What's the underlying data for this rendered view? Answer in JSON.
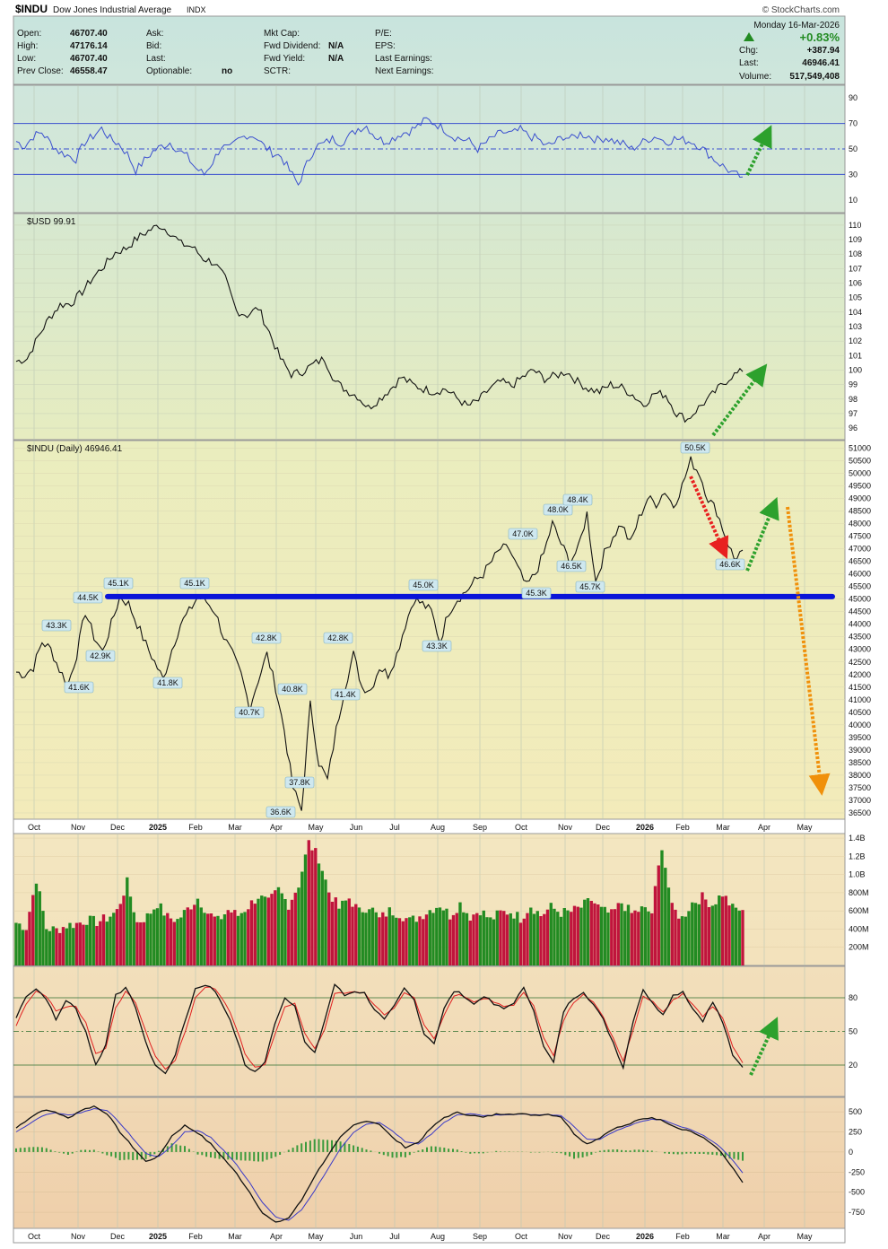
{
  "header": {
    "symbol": "$INDU",
    "name": "Dow Jones Industrial Average",
    "exchange": "INDX",
    "watermark": "© StockCharts.com",
    "date": "Monday  16-Mar-2026",
    "quote_left": [
      {
        "label": "Open:",
        "value": "46707.40"
      },
      {
        "label": "High:",
        "value": "47176.14"
      },
      {
        "label": "Low:",
        "value": "46707.40"
      },
      {
        "label": "Prev Close:",
        "value": "46558.47"
      }
    ],
    "quote_mid": [
      {
        "label": "Ask:",
        "value": ""
      },
      {
        "label": "Bid:",
        "value": ""
      },
      {
        "label": "Last:",
        "value": ""
      },
      {
        "label": "Optionable:",
        "value": "no"
      }
    ],
    "quote_mid2": [
      {
        "label": "Mkt Cap:",
        "value": ""
      },
      {
        "label": "Fwd Dividend:",
        "value": "N/A"
      },
      {
        "label": "Fwd Yield:",
        "value": "N/A"
      },
      {
        "label": "SCTR:",
        "value": ""
      }
    ],
    "quote_right": [
      {
        "label": "P/E:",
        "value": ""
      },
      {
        "label": "EPS:",
        "value": ""
      },
      {
        "label": "Last Earnings:",
        "value": ""
      },
      {
        "label": "Next Earnings:",
        "value": ""
      }
    ],
    "change_pct": "+0.83%",
    "chg_label": "Chg:",
    "chg_value": "+387.94",
    "last_label": "Last:",
    "last_value": "46946.41",
    "volume_label": "Volume:",
    "volume_value": "517,549,408"
  },
  "colors": {
    "up": "#228b22",
    "down": "#c0143c",
    "rsi": "#3a4fcf",
    "level": "#0a14d8",
    "arrow_green": "#2da12d",
    "arrow_red": "#e82020",
    "arrow_orange": "#f0900a",
    "signal": "#e02020",
    "macd": "#111111",
    "macd_signal": "#3a3ac8"
  },
  "chart_data": [
    {
      "type": "line",
      "panel": "RSI",
      "y_ticks": [
        90,
        70,
        50,
        30,
        10
      ],
      "ylim": [
        0,
        100
      ],
      "levels": [
        70,
        50,
        30
      ],
      "values": [
        56,
        52,
        60,
        63,
        55,
        48,
        45,
        42,
        55,
        60,
        66,
        58,
        54,
        46,
        33,
        41,
        48,
        52,
        55,
        49,
        44,
        35,
        30,
        40,
        52,
        50,
        57,
        61,
        60,
        52,
        47,
        44,
        33,
        22,
        38,
        52,
        54,
        58,
        55,
        60,
        66,
        68,
        60,
        56,
        58,
        62,
        64,
        68,
        73,
        70,
        66,
        60,
        58,
        56,
        50,
        55,
        60,
        63,
        62,
        65,
        60,
        58,
        52,
        55,
        60,
        58,
        62,
        60,
        57,
        59,
        56,
        54,
        50,
        54,
        58,
        60,
        55,
        58,
        57,
        56,
        52,
        46,
        40,
        35,
        30,
        28
      ]
    },
    {
      "type": "line",
      "panel": "$USD",
      "title": "$USD 99.91",
      "y_ticks": [
        110,
        109,
        108,
        107,
        106,
        105,
        104,
        103,
        102,
        101,
        100,
        99,
        98,
        97,
        96
      ],
      "ylim": [
        95.2,
        110.8
      ],
      "values": [
        100.6,
        100.8,
        102.3,
        103.6,
        104.5,
        104.6,
        105.4,
        106.4,
        107.2,
        108.1,
        108.4,
        109.1,
        109.6,
        110.0,
        109.5,
        108.7,
        108.5,
        107.7,
        107.4,
        106.3,
        104.1,
        103.8,
        104.3,
        102.6,
        100.8,
        99.7,
        99.9,
        100.4,
        100.8,
        99.2,
        98.6,
        98.2,
        97.4,
        98.0,
        98.7,
        99.5,
        99.0,
        98.7,
        98.5,
        98.7,
        98.1,
        97.5,
        97.9,
        98.7,
        99.2,
        98.9,
        99.5,
        100.0,
        99.4,
        99.6,
        99.9,
        99.2,
        98.7,
        98.5,
        99.0,
        98.8,
        98.3,
        97.6,
        98.4,
        98.3,
        97.0,
        96.6,
        97.4,
        98.1,
        98.9,
        99.6,
        99.9
      ]
    },
    {
      "type": "line",
      "panel": "$INDU",
      "title": "$INDU (Daily) 46946.41",
      "y_ticks": [
        51000,
        50500,
        50000,
        49500,
        49000,
        48500,
        48000,
        47500,
        47000,
        46500,
        46000,
        45500,
        45000,
        44500,
        44000,
        43500,
        43000,
        42500,
        42000,
        41500,
        41000,
        40500,
        40000,
        39500,
        39000,
        38500,
        38000,
        37500,
        37000,
        36500
      ],
      "ylim": [
        36250,
        51300
      ],
      "support_level": 45100,
      "values": [
        42100,
        42000,
        42300,
        43300,
        43000,
        42200,
        41600,
        42800,
        44500,
        43500,
        42900,
        44000,
        45100,
        44800,
        44000,
        43200,
        42500,
        41800,
        43000,
        44000,
        44500,
        45100,
        44900,
        44500,
        43500,
        42800,
        42000,
        40700,
        41800,
        42800,
        41500,
        39800,
        37500,
        36600,
        40800,
        38500,
        37800,
        39800,
        41500,
        42800,
        41500,
        41400,
        42300,
        42000,
        42800,
        44000,
        45000,
        44800,
        44500,
        43300,
        44500,
        45000,
        45300,
        45700,
        46000,
        46500,
        47000,
        47000,
        46200,
        45500,
        46000,
        46800,
        48000,
        47200,
        46500,
        47000,
        48400,
        45700,
        46800,
        47500,
        48000,
        47200,
        48200,
        49000,
        48800,
        49300,
        48700,
        49500,
        50500,
        50000,
        49000,
        48500,
        47500,
        46600,
        46946
      ]
    },
    {
      "type": "bar",
      "panel": "Volume",
      "y_ticks": [
        "1.4B",
        "1.2B",
        "1.0B",
        "800M",
        "600M",
        "400M",
        "200M"
      ],
      "ylim": [
        0,
        1450000000
      ],
      "values": [
        470000000.0,
        420000000.0,
        950000000.0,
        410000000.0,
        390000000.0,
        440000000.0,
        460000000.0,
        500000000.0,
        480000000.0,
        520000000.0,
        600000000.0,
        910000000.0,
        470000000.0,
        540000000.0,
        680000000.0,
        530000000.0,
        500000000.0,
        620000000.0,
        740000000.0,
        580000000.0,
        490000000.0,
        610000000.0,
        550000000.0,
        650000000.0,
        760000000.0,
        690000000.0,
        830000000.0,
        670000000.0,
        890000000.0,
        1350000000.0,
        1180000000.0,
        810000000.0,
        630000000.0,
        740000000.0,
        590000000.0,
        660000000.0,
        510000000.0,
        600000000.0,
        570000000.0,
        490000000.0,
        540000000.0,
        610000000.0,
        670000000.0,
        550000000.0,
        680000000.0,
        540000000.0,
        610000000.0,
        500000000.0,
        580000000.0,
        590000000.0,
        520000000.0,
        660000000.0,
        550000000.0,
        640000000.0,
        580000000.0,
        590000000.0,
        640000000.0,
        720000000.0,
        610000000.0,
        560000000.0,
        690000000.0,
        570000000.0,
        620000000.0,
        580000000.0,
        1320000000.0,
        630000000.0,
        520000000.0,
        690000000.0,
        750000000.0,
        670000000.0,
        790000000.0,
        630000000.0,
        610000000.0
      ],
      "up": [
        1,
        0,
        1,
        1,
        0,
        1,
        0,
        1,
        0,
        1,
        0,
        1,
        0,
        1,
        1,
        0,
        1,
        0,
        1,
        0,
        1,
        0,
        1,
        0,
        1,
        0,
        1,
        0,
        1,
        0,
        1,
        0,
        1,
        0,
        1,
        1,
        0,
        1,
        0,
        1,
        0,
        1,
        1,
        0,
        1,
        0,
        1,
        1,
        0,
        1,
        0,
        1,
        0,
        1,
        1,
        0,
        1,
        0,
        1,
        0,
        1,
        0,
        1,
        0,
        1,
        0,
        1,
        1,
        0,
        1,
        0,
        1,
        0
      ]
    },
    {
      "type": "line",
      "panel": "Stochastics",
      "y_ticks": [
        80,
        50,
        20
      ],
      "ylim": [
        0,
        100
      ],
      "levels": [
        80,
        50,
        20
      ],
      "series": [
        {
          "values": [
            62,
            82,
            88,
            80,
            60,
            78,
            70,
            50,
            20,
            38,
            84,
            88,
            72,
            40,
            20,
            12,
            30,
            60,
            88,
            92,
            86,
            70,
            48,
            20,
            14,
            22,
            58,
            80,
            74,
            40,
            30,
            60,
            92,
            82,
            86,
            84,
            70,
            60,
            72,
            88,
            78,
            48,
            40,
            70,
            86,
            82,
            74,
            82,
            74,
            70,
            76,
            88,
            70,
            36,
            22,
            68,
            80,
            86,
            74,
            60,
            40,
            18,
            60,
            88,
            74,
            66,
            82,
            86,
            70,
            60,
            76,
            58,
            28,
            18
          ]
        },
        {
          "values": [
            55,
            75,
            86,
            82,
            68,
            72,
            72,
            58,
            30,
            35,
            72,
            85,
            76,
            50,
            28,
            16,
            25,
            50,
            80,
            90,
            88,
            76,
            56,
            30,
            18,
            20,
            48,
            72,
            76,
            48,
            34,
            52,
            84,
            84,
            86,
            84,
            74,
            64,
            70,
            84,
            80,
            56,
            44,
            64,
            82,
            82,
            76,
            80,
            76,
            72,
            74,
            84,
            74,
            44,
            28,
            60,
            76,
            84,
            76,
            62,
            44,
            24,
            52,
            82,
            76,
            68,
            78,
            84,
            74,
            64,
            72,
            62,
            36,
            22
          ]
        }
      ]
    },
    {
      "type": "line",
      "panel": "MACD",
      "y_ticks": [
        500,
        250,
        0,
        -250,
        -500,
        -750
      ],
      "ylim": [
        -950,
        680
      ],
      "series": [
        {
          "values": [
            300,
            420,
            520,
            500,
            420,
            520,
            570,
            480,
            250,
            60,
            -120,
            -50,
            200,
            330,
            240,
            100,
            -80,
            -270,
            -500,
            -760,
            -880,
            -820,
            -600,
            -300,
            -50,
            180,
            330,
            390,
            350,
            180,
            60,
            120,
            300,
            430,
            490,
            460,
            430,
            470,
            480,
            470,
            460,
            470,
            440,
            230,
            100,
            180,
            290,
            330,
            400,
            430,
            380,
            300,
            260,
            170,
            60,
            -150,
            -380
          ]
        },
        {
          "values": [
            250,
            350,
            450,
            490,
            460,
            490,
            540,
            520,
            360,
            170,
            -20,
            -60,
            80,
            250,
            270,
            180,
            20,
            -160,
            -380,
            -630,
            -810,
            -850,
            -720,
            -480,
            -220,
            40,
            240,
            350,
            370,
            260,
            130,
            100,
            220,
            370,
            460,
            480,
            450,
            460,
            470,
            470,
            465,
            468,
            455,
            320,
            160,
            160,
            250,
            310,
            370,
            410,
            395,
            330,
            280,
            200,
            100,
            -60,
            -260
          ]
        }
      ]
    },
    {
      "type": "axis",
      "panel": "time-axis",
      "months": [
        "Oct",
        "Nov",
        "Dec",
        "2025",
        "Feb",
        "Mar",
        "Apr",
        "May",
        "Jun",
        "Jul",
        "Aug",
        "Sep",
        "Oct",
        "Nov",
        "Dec",
        "2026",
        "Feb",
        "Mar",
        "Apr",
        "May"
      ]
    }
  ],
  "annotations": {
    "price_labels": [
      {
        "text": "45.1K",
        "at": 45100
      },
      {
        "text": "45.1K",
        "at": 45100
      },
      {
        "text": "44.5K",
        "at": 44500
      },
      {
        "text": "43.3K",
        "at": 43300
      },
      {
        "text": "42.9K",
        "at": 42900
      },
      {
        "text": "41.6K",
        "at": 41600
      },
      {
        "text": "41.8K",
        "at": 41800
      },
      {
        "text": "42.8K",
        "at": 42800
      },
      {
        "text": "40.7K",
        "at": 40700
      },
      {
        "text": "40.8K",
        "at": 40800
      },
      {
        "text": "36.6K",
        "at": 36600
      },
      {
        "text": "37.8K",
        "at": 37800
      },
      {
        "text": "42.8K",
        "at": 42800
      },
      {
        "text": "41.4K",
        "at": 41400
      },
      {
        "text": "45.0K",
        "at": 45000
      },
      {
        "text": "43.3K",
        "at": 43300
      },
      {
        "text": "47.0K",
        "at": 47000
      },
      {
        "text": "45.3K",
        "at": 45300
      },
      {
        "text": "48.0K",
        "at": 48000
      },
      {
        "text": "48.4K",
        "at": 48400
      },
      {
        "text": "46.5K",
        "at": 46500
      },
      {
        "text": "45.7K",
        "at": 45700
      },
      {
        "text": "50.5K",
        "at": 50500
      },
      {
        "text": "46.6K",
        "at": 46600
      }
    ]
  }
}
